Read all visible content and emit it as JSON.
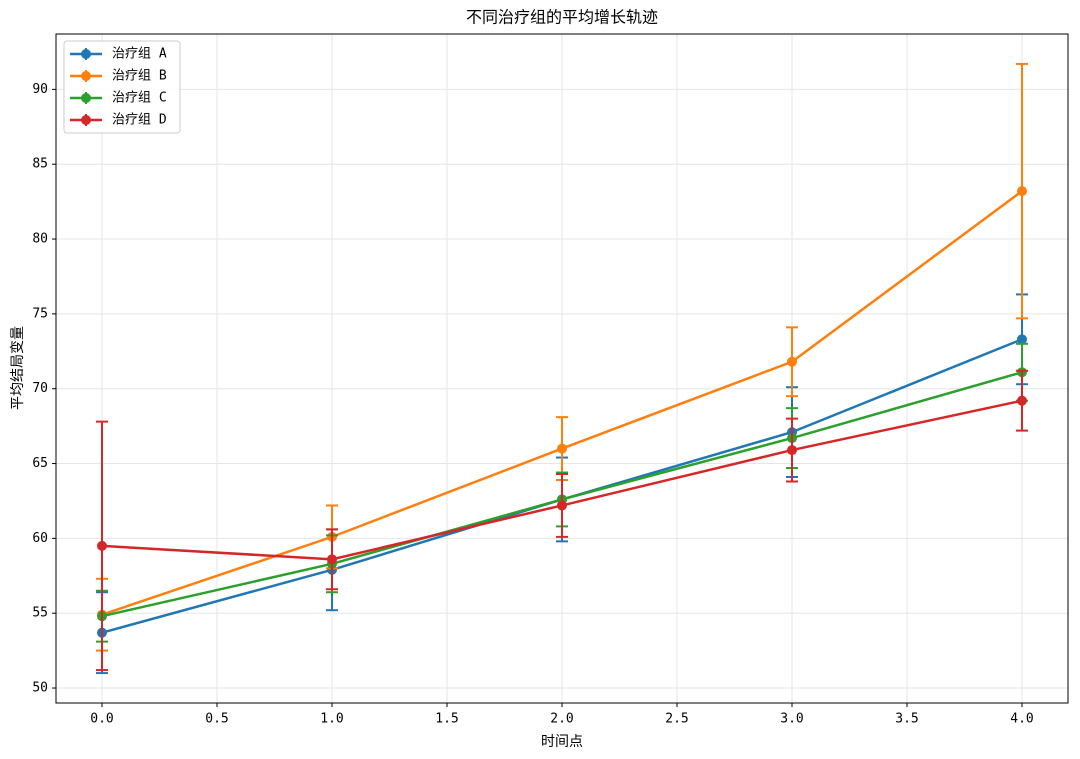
{
  "chart_data": {
    "type": "line",
    "title": "不同治疗组的平均增长轨迹",
    "x_label": "时间点",
    "y_label": "平均结局变量",
    "x": [
      0,
      1,
      2,
      3,
      4
    ],
    "series": [
      {
        "name": "治疗组 A",
        "color": "#1f77b4",
        "values": [
          53.7,
          57.9,
          62.6,
          67.1,
          73.3
        ],
        "errors": [
          2.7,
          2.7,
          2.8,
          3.0,
          3.0
        ]
      },
      {
        "name": "治疗组 B",
        "color": "#ff7f0e",
        "values": [
          54.9,
          60.1,
          66.0,
          71.8,
          83.2
        ],
        "errors": [
          2.4,
          2.1,
          2.1,
          2.3,
          8.5
        ]
      },
      {
        "name": "治疗组 C",
        "color": "#2ca02c",
        "values": [
          54.8,
          58.3,
          62.6,
          66.7,
          71.1
        ],
        "errors": [
          1.7,
          1.9,
          1.8,
          2.0,
          1.9
        ]
      },
      {
        "name": "治疗组 D",
        "color": "#d62728",
        "values": [
          59.5,
          58.6,
          62.2,
          65.9,
          69.2
        ],
        "errors": [
          8.3,
          2.0,
          2.1,
          2.1,
          2.0
        ]
      }
    ],
    "xlim": [
      -0.2,
      4.2
    ],
    "ylim": [
      49.0,
      93.7
    ],
    "xticks": [
      {
        "value": 0,
        "label": "0.0"
      },
      0.5,
      {
        "value": 1,
        "label": "1.0"
      },
      1.5,
      {
        "value": 2,
        "label": "2.0"
      },
      2.5,
      {
        "value": 3,
        "label": "3.0"
      },
      3.5,
      {
        "value": 4,
        "label": "4.0"
      }
    ],
    "yticks": [
      50,
      55,
      60,
      65,
      70,
      75,
      80,
      85,
      90
    ],
    "grid": true,
    "legend": "upper-left"
  }
}
